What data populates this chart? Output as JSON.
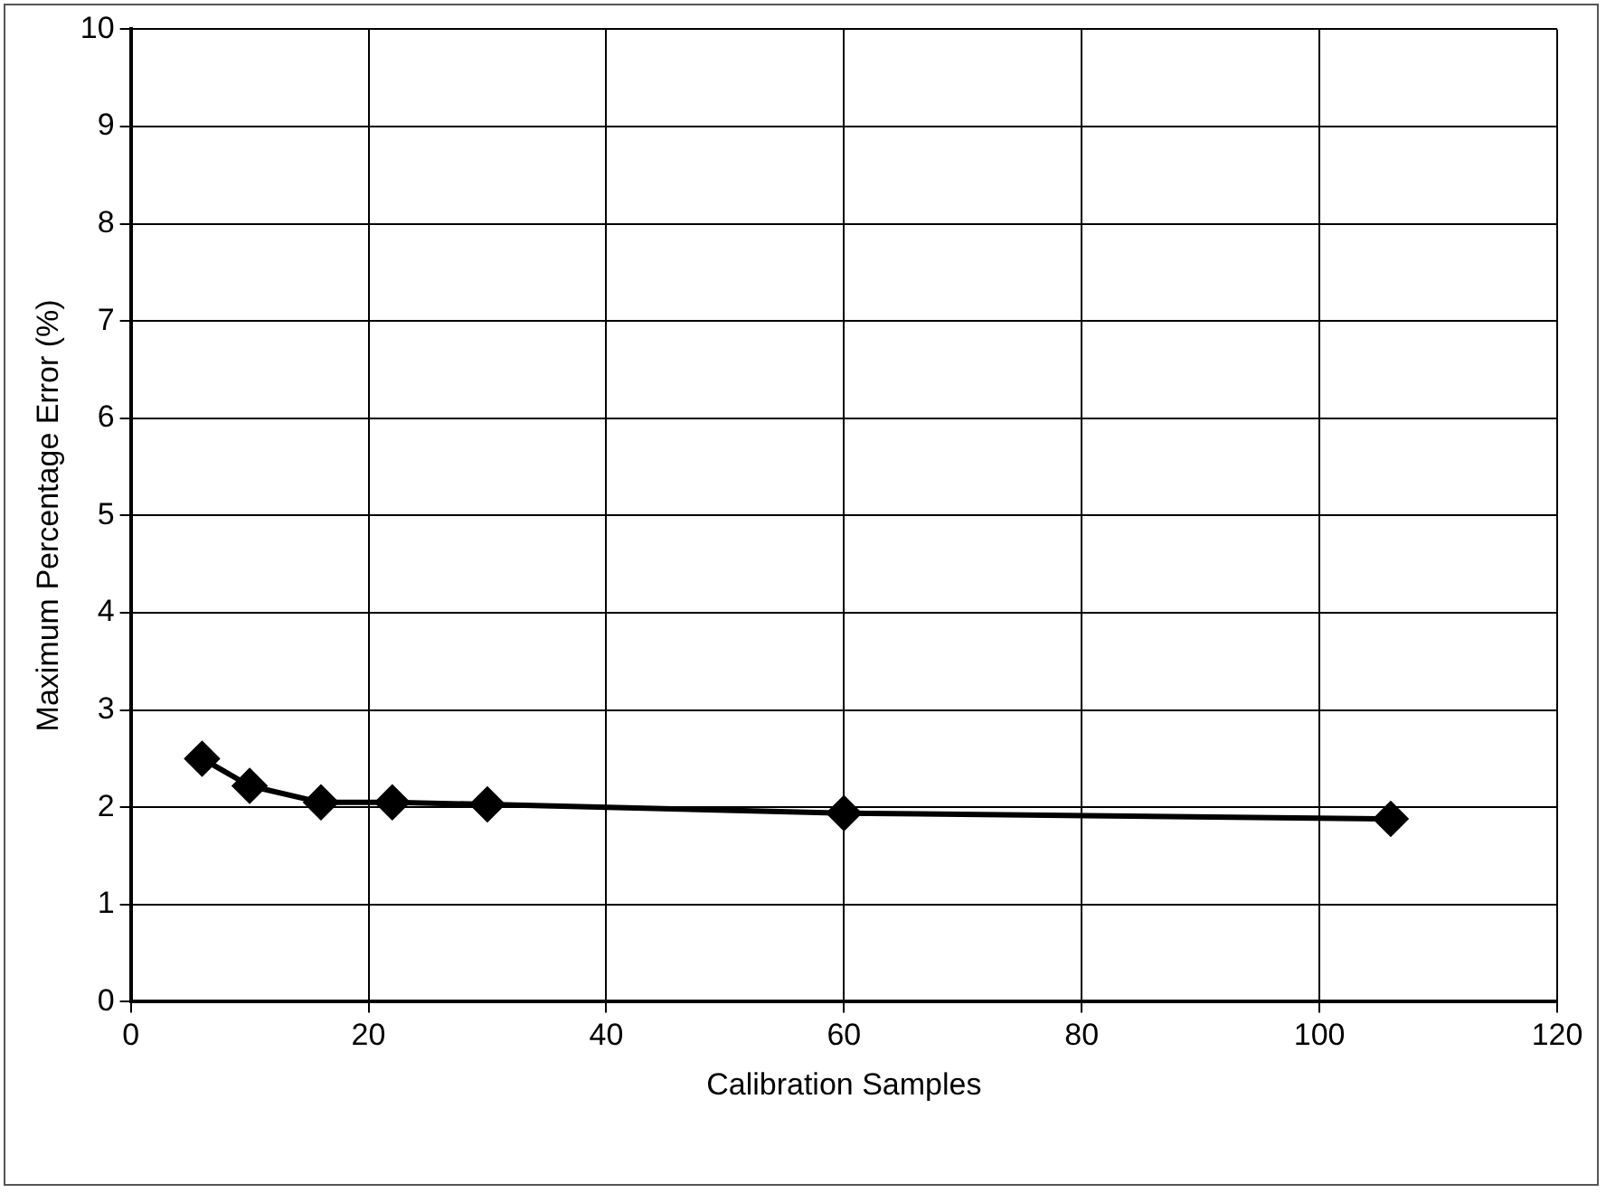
{
  "chart_data": {
    "type": "line",
    "xlabel": "Calibration Samples",
    "ylabel": "Maximum Percentage Error (%)",
    "x": [
      6,
      10,
      16,
      22,
      30,
      60,
      106
    ],
    "series": [
      {
        "color": "#000000",
        "values": [
          2.5,
          2.22,
          2.05,
          2.05,
          2.03,
          1.94,
          1.88
        ]
      }
    ],
    "xlim": [
      0,
      120
    ],
    "xticks": [
      0,
      20,
      40,
      60,
      80,
      100,
      120
    ],
    "ylim": [
      0,
      10
    ],
    "yticks": [
      0,
      1,
      2,
      3,
      4,
      5,
      6,
      7,
      8,
      9,
      10
    ],
    "grid": true,
    "legend": false,
    "marker": "diamond",
    "line_style": "solid"
  }
}
